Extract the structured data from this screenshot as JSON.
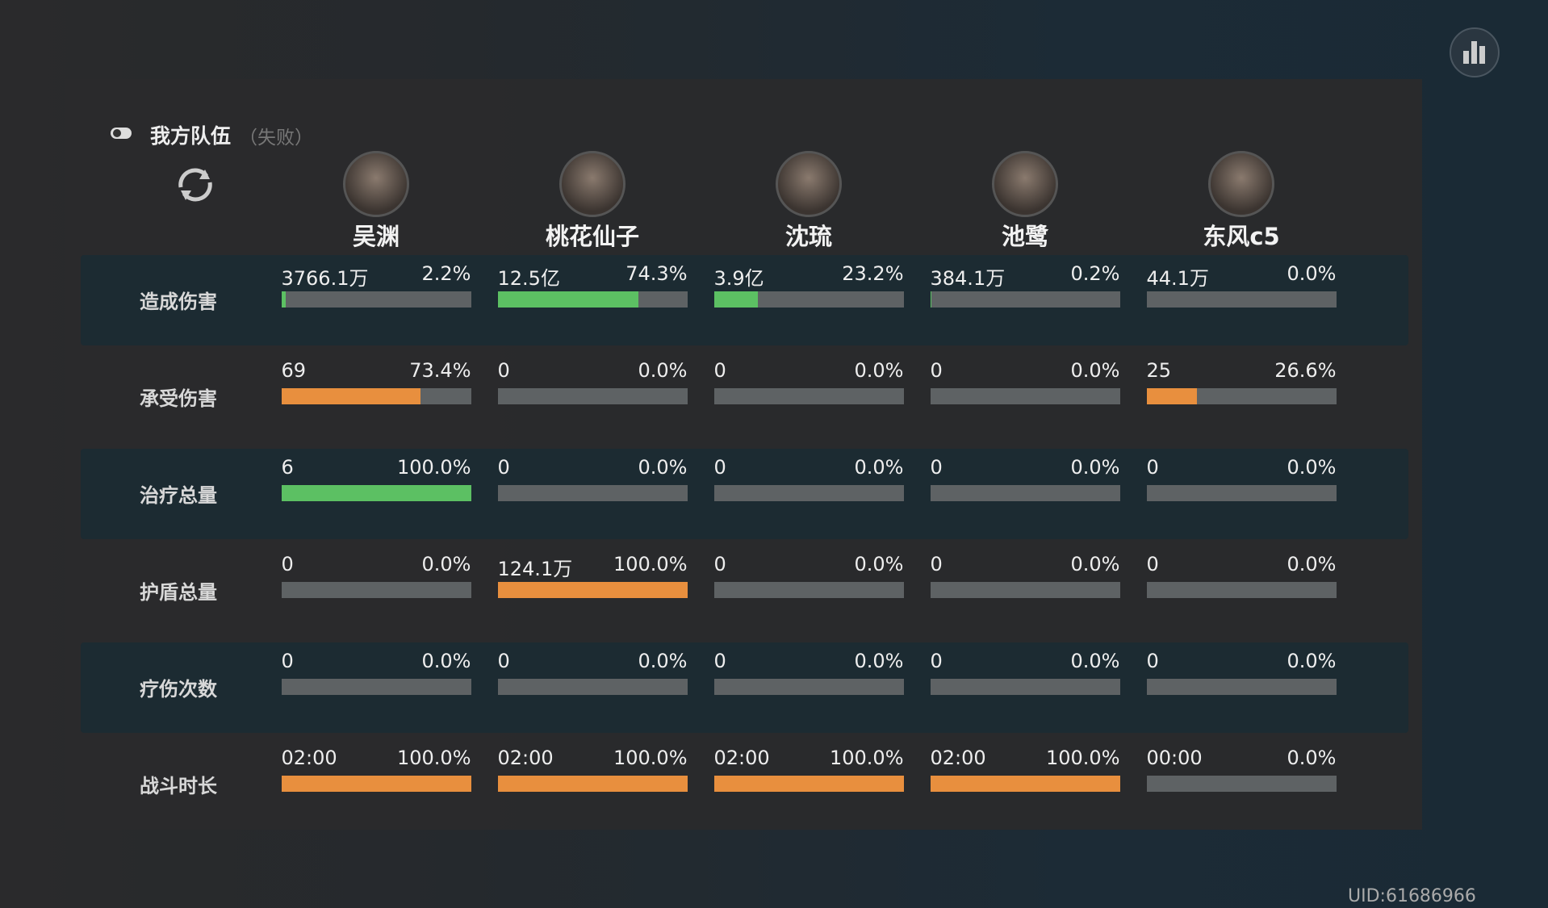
{
  "header": {
    "title": "我方队伍",
    "status": "（失败）"
  },
  "players": [
    "吴渊",
    "桃花仙子",
    "沈琉",
    "池鹭",
    "东风c5"
  ],
  "rows": [
    {
      "label": "造成伤害",
      "bar_color": "#5cc063",
      "cells": [
        {
          "amount": "3766.1万",
          "share": {
            "value": 2.2,
            "label": "2.2%"
          }
        },
        {
          "amount": "12.5亿",
          "share": {
            "value": 74.3,
            "label": "74.3%"
          }
        },
        {
          "amount": "3.9亿",
          "share": {
            "value": 23.2,
            "label": "23.2%"
          }
        },
        {
          "amount": "384.1万",
          "share": {
            "value": 0.2,
            "label": "0.2%"
          }
        },
        {
          "amount": "44.1万",
          "share": {
            "value": 0.0,
            "label": "0.0%"
          }
        }
      ]
    },
    {
      "label": "承受伤害",
      "bar_color": "#e88f3e",
      "cells": [
        {
          "amount": "69",
          "share": {
            "value": 73.4,
            "label": "73.4%"
          }
        },
        {
          "amount": "0",
          "share": {
            "value": 0.0,
            "label": "0.0%"
          }
        },
        {
          "amount": "0",
          "share": {
            "value": 0.0,
            "label": "0.0%"
          }
        },
        {
          "amount": "0",
          "share": {
            "value": 0.0,
            "label": "0.0%"
          }
        },
        {
          "amount": "25",
          "share": {
            "value": 26.6,
            "label": "26.6%"
          }
        }
      ]
    },
    {
      "label": "治疗总量",
      "bar_color": "#5cc063",
      "cells": [
        {
          "amount": "6",
          "share": {
            "value": 100.0,
            "label": "100.0%"
          }
        },
        {
          "amount": "0",
          "share": {
            "value": 0.0,
            "label": "0.0%"
          }
        },
        {
          "amount": "0",
          "share": {
            "value": 0.0,
            "label": "0.0%"
          }
        },
        {
          "amount": "0",
          "share": {
            "value": 0.0,
            "label": "0.0%"
          }
        },
        {
          "amount": "0",
          "share": {
            "value": 0.0,
            "label": "0.0%"
          }
        }
      ]
    },
    {
      "label": "护盾总量",
      "bar_color": "#e88f3e",
      "cells": [
        {
          "amount": "0",
          "share": {
            "value": 0.0,
            "label": "0.0%"
          }
        },
        {
          "amount": "124.1万",
          "share": {
            "value": 100.0,
            "label": "100.0%"
          }
        },
        {
          "amount": "0",
          "share": {
            "value": 0.0,
            "label": "0.0%"
          }
        },
        {
          "amount": "0",
          "share": {
            "value": 0.0,
            "label": "0.0%"
          }
        },
        {
          "amount": "0",
          "share": {
            "value": 0.0,
            "label": "0.0%"
          }
        }
      ]
    },
    {
      "label": "疗伤次数",
      "cells": [
        {
          "amount": "0",
          "share": {
            "value": 0.0,
            "label": "0.0%"
          }
        },
        {
          "amount": "0",
          "share": {
            "value": 0.0,
            "label": "0.0%"
          }
        },
        {
          "amount": "0",
          "share": {
            "value": 0.0,
            "label": "0.0%"
          }
        },
        {
          "amount": "0",
          "share": {
            "value": 0.0,
            "label": "0.0%"
          }
        },
        {
          "amount": "0",
          "share": {
            "value": 0.0,
            "label": "0.0%"
          }
        }
      ]
    },
    {
      "label": "战斗时长",
      "bar_color": "#e88f3e",
      "cells": [
        {
          "amount": "02:00",
          "share": {
            "value": 100.0,
            "label": "100.0%"
          }
        },
        {
          "amount": "02:00",
          "share": {
            "value": 100.0,
            "label": "100.0%"
          }
        },
        {
          "amount": "02:00",
          "share": {
            "value": 100.0,
            "label": "100.0%"
          }
        },
        {
          "amount": "02:00",
          "share": {
            "value": 100.0,
            "label": "100.0%"
          }
        },
        {
          "amount": "00:00",
          "share": {
            "value": 0.0,
            "label": "0.0%"
          }
        }
      ]
    }
  ],
  "uid": "UID:61686966"
}
